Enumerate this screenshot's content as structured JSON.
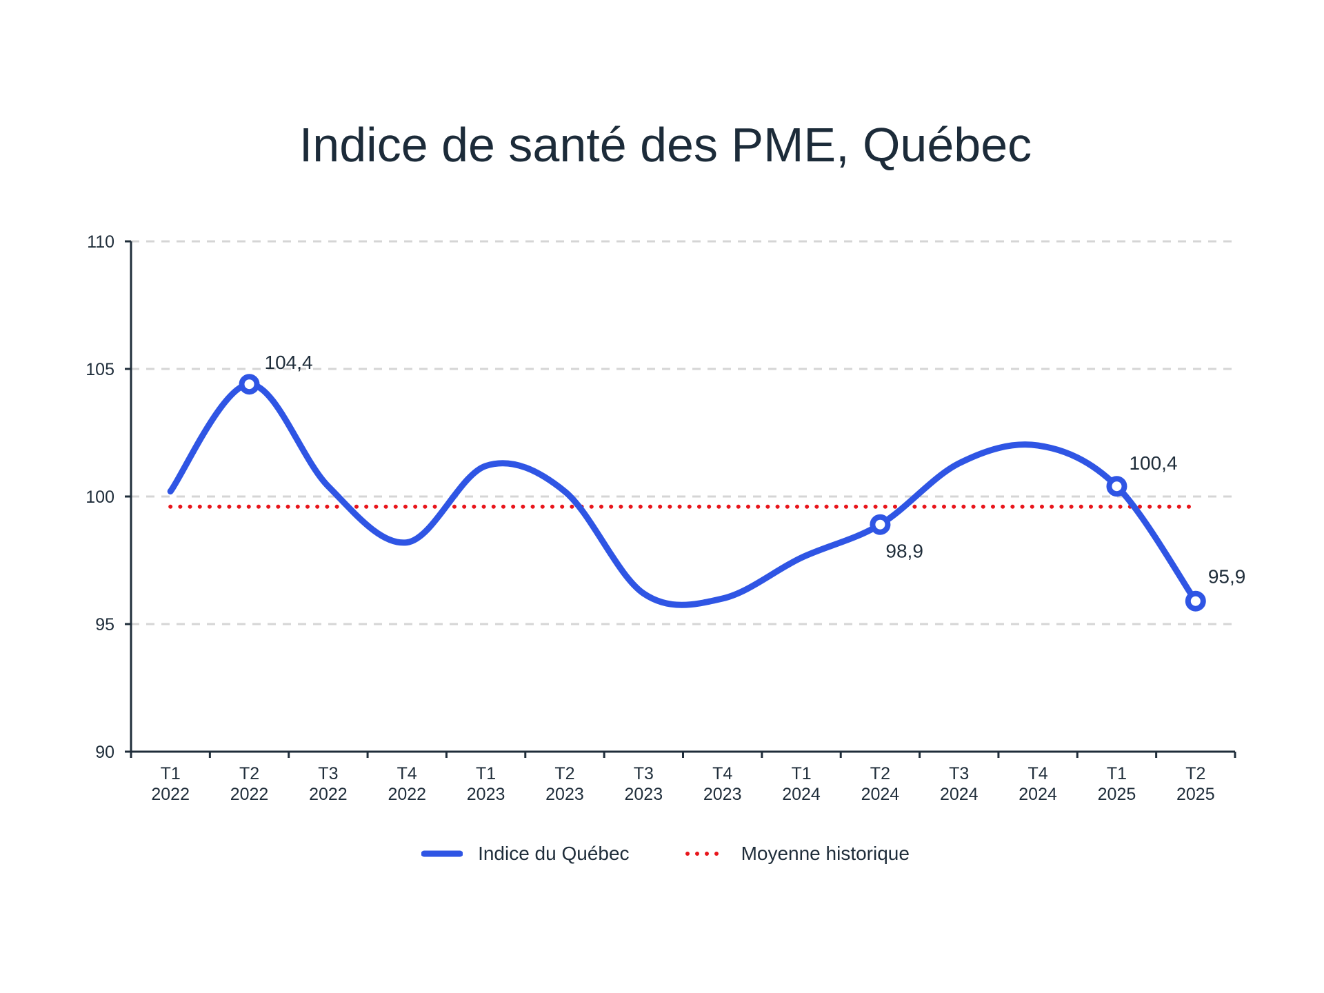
{
  "chart_data": {
    "type": "line",
    "title": "Indice de santé des PME, Québec",
    "categories": [
      "T1\n2022",
      "T2\n2022",
      "T3\n2022",
      "T4\n2022",
      "T1\n2023",
      "T2\n2023",
      "T3\n2023",
      "T4\n2023",
      "T1\n2024",
      "T2\n2024",
      "T3\n2024",
      "T4\n2024",
      "T1\n2025",
      "T2\n2025"
    ],
    "series": [
      {
        "name": "Indice du Québec",
        "color": "#2f55e4",
        "style": "solid-smooth",
        "values": [
          100.2,
          104.4,
          100.4,
          98.2,
          101.2,
          100.2,
          96.2,
          96.0,
          97.6,
          98.9,
          101.3,
          102.0,
          100.4,
          95.9
        ]
      },
      {
        "name": "Moyenne historique",
        "color": "#e8151b",
        "style": "dotted",
        "values": [
          99.6,
          99.6,
          99.6,
          99.6,
          99.6,
          99.6,
          99.6,
          99.6,
          99.6,
          99.6,
          99.6,
          99.6,
          99.6,
          99.6
        ]
      }
    ],
    "annotations": [
      {
        "index": 1,
        "text": "104,4"
      },
      {
        "index": 9,
        "text": "98,9"
      },
      {
        "index": 12,
        "text": "100,4"
      },
      {
        "index": 13,
        "text": "95,9"
      }
    ],
    "ylim": [
      90,
      110
    ],
    "yticks": [
      "90",
      "95",
      "100",
      "105",
      "110"
    ],
    "grid": true,
    "legend": "bottom",
    "xlabel": "",
    "ylabel": ""
  }
}
